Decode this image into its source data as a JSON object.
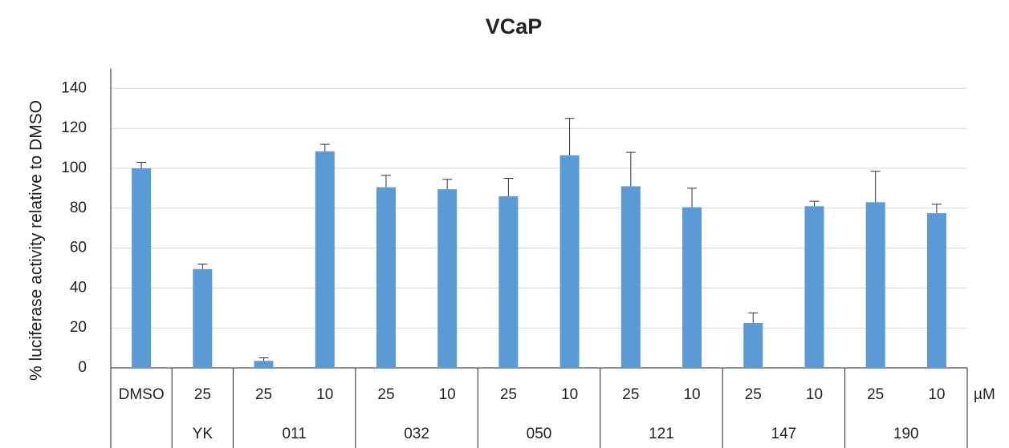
{
  "chart_data": {
    "type": "bar",
    "title": "VCaP",
    "y_label": "% luciferase activity relative to DMSO",
    "unit_label": "µM",
    "categories": [
      "DMSO",
      "25",
      "25",
      "10",
      "25",
      "10",
      "25",
      "10",
      "25",
      "10",
      "25",
      "10",
      "25",
      "10"
    ],
    "groups": [
      {
        "name": null,
        "size": 1
      },
      {
        "name": "YK",
        "size": 1
      },
      {
        "name": "011",
        "size": 2
      },
      {
        "name": "032",
        "size": 2
      },
      {
        "name": "050",
        "size": 2
      },
      {
        "name": "121",
        "size": 2
      },
      {
        "name": "147",
        "size": 2
      },
      {
        "name": "190",
        "size": 2
      }
    ],
    "values": [
      100,
      49.5,
      3.5,
      108.5,
      90.5,
      89.5,
      86,
      106.5,
      91,
      80.5,
      22.5,
      81,
      83,
      77.5
    ],
    "errors": [
      3,
      2.5,
      1.5,
      3.5,
      6,
      5,
      9,
      18.5,
      17,
      9.5,
      5,
      2.5,
      15.5,
      4.5
    ],
    "color": "#5b9bd5",
    "ylim": [
      0,
      150
    ],
    "yticks": [
      0,
      20,
      40,
      60,
      80,
      100,
      120,
      140
    ],
    "grid": true
  }
}
